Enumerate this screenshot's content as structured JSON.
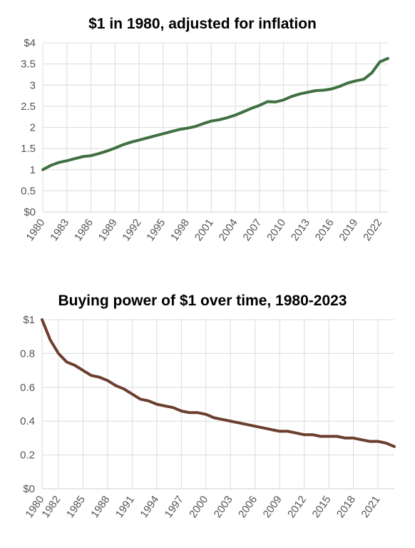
{
  "chart_data": [
    {
      "type": "line",
      "title": "$1 in 1980, adjusted for inflation",
      "xlabel": "",
      "ylabel": "",
      "xlim": [
        1980,
        2023
      ],
      "ylim": [
        0,
        4
      ],
      "grid": true,
      "legend": "none",
      "y_ticks": [
        "$0",
        "0.5",
        "1",
        "1.5",
        "2",
        "2.5",
        "3",
        "3.5",
        "$4"
      ],
      "x_ticks": [
        "1980",
        "1983",
        "1986",
        "1989",
        "1992",
        "1995",
        "1998",
        "2001",
        "2004",
        "2007",
        "2010",
        "2013",
        "2016",
        "2019",
        "2022"
      ],
      "color": "#3f7040",
      "series": [
        {
          "x": [
            1980,
            1981,
            1982,
            1983,
            1984,
            1985,
            1986,
            1987,
            1988,
            1989,
            1990,
            1991,
            1992,
            1993,
            1994,
            1995,
            1996,
            1997,
            1998,
            1999,
            2000,
            2001,
            2002,
            2003,
            2004,
            2005,
            2006,
            2007,
            2008,
            2009,
            2010,
            2011,
            2012,
            2013,
            2014,
            2015,
            2016,
            2017,
            2018,
            2019,
            2020,
            2021,
            2022,
            2023
          ],
          "values": [
            1.0,
            1.1,
            1.17,
            1.21,
            1.26,
            1.31,
            1.33,
            1.38,
            1.44,
            1.51,
            1.59,
            1.65,
            1.7,
            1.75,
            1.8,
            1.85,
            1.9,
            1.95,
            1.98,
            2.02,
            2.09,
            2.15,
            2.18,
            2.23,
            2.29,
            2.37,
            2.45,
            2.52,
            2.61,
            2.6,
            2.65,
            2.73,
            2.79,
            2.83,
            2.87,
            2.88,
            2.91,
            2.97,
            3.05,
            3.1,
            3.14,
            3.29,
            3.55,
            3.63
          ]
        }
      ]
    },
    {
      "type": "line",
      "title": "Buying power of $1 over time, 1980-2023",
      "xlabel": "",
      "ylabel": "",
      "xlim": [
        1980,
        2023
      ],
      "ylim": [
        0,
        1
      ],
      "grid": true,
      "legend": "none",
      "y_ticks": [
        "$0",
        "0.2",
        "0.4",
        "0.6",
        "0.8",
        "$1"
      ],
      "x_ticks": [
        "1980",
        "1982",
        "1985",
        "1988",
        "1991",
        "1994",
        "1997",
        "2000",
        "2003",
        "2006",
        "2009",
        "2012",
        "2015",
        "2018",
        "2021"
      ],
      "color": "#6b3f2e",
      "series": [
        {
          "x": [
            1980,
            1981,
            1982,
            1983,
            1984,
            1985,
            1986,
            1987,
            1988,
            1989,
            1990,
            1991,
            1992,
            1993,
            1994,
            1995,
            1996,
            1997,
            1998,
            1999,
            2000,
            2001,
            2002,
            2003,
            2004,
            2005,
            2006,
            2007,
            2008,
            2009,
            2010,
            2011,
            2012,
            2013,
            2014,
            2015,
            2016,
            2017,
            2018,
            2019,
            2020,
            2021,
            2022,
            2023
          ],
          "values": [
            1.0,
            0.88,
            0.8,
            0.75,
            0.73,
            0.7,
            0.67,
            0.66,
            0.64,
            0.61,
            0.59,
            0.56,
            0.53,
            0.52,
            0.5,
            0.49,
            0.48,
            0.46,
            0.45,
            0.45,
            0.44,
            0.42,
            0.41,
            0.4,
            0.39,
            0.38,
            0.37,
            0.36,
            0.35,
            0.34,
            0.34,
            0.33,
            0.32,
            0.32,
            0.31,
            0.31,
            0.31,
            0.3,
            0.3,
            0.29,
            0.28,
            0.28,
            0.27,
            0.25
          ]
        }
      ]
    }
  ]
}
